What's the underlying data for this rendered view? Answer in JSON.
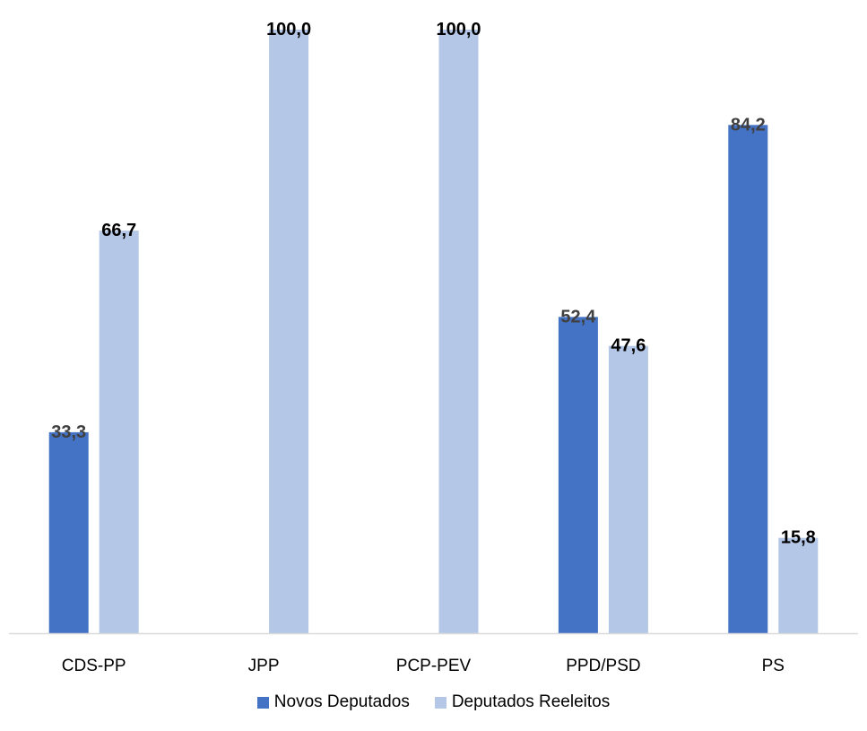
{
  "chart_data": {
    "type": "bar",
    "title": "",
    "xlabel": "",
    "ylabel": "",
    "ylim": [
      0,
      100
    ],
    "grid": false,
    "legend_position": "bottom",
    "categories": [
      "CDS-PP",
      "JPP",
      "PCP-PEV",
      "PPD/PSD",
      "PS"
    ],
    "series": [
      {
        "name": "Novos Deputados",
        "color": "#4472C4",
        "values": [
          33.3,
          null,
          null,
          52.4,
          84.2
        ],
        "labels": [
          "33,3",
          "",
          "",
          "52,4",
          "84,2"
        ],
        "label_color": "#404040"
      },
      {
        "name": "Deputados Reeleitos",
        "color": "#B4C7E7",
        "values": [
          66.7,
          100.0,
          100.0,
          47.6,
          15.8
        ],
        "labels": [
          "66,7",
          "100,0",
          "100,0",
          "47,6",
          "15,8"
        ],
        "label_color": "#000000"
      }
    ]
  },
  "legend": {
    "items": [
      {
        "label": "Novos Deputados",
        "color": "#4472C4"
      },
      {
        "label": "Deputados Reeleitos",
        "color": "#B4C7E7"
      }
    ]
  }
}
